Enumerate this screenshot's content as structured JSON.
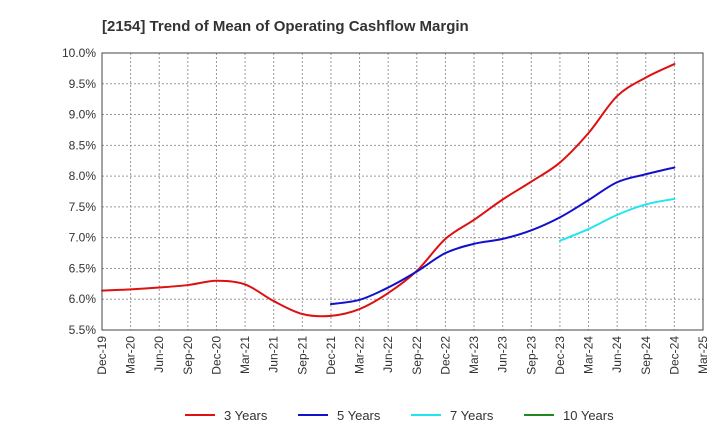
{
  "chart_data": {
    "type": "line",
    "title": "[2154]  Trend of Mean of Operating Cashflow Margin",
    "xlabel": "",
    "ylabel": "",
    "ylim": [
      5.5,
      10.0
    ],
    "y_ticks": [
      5.5,
      6.0,
      6.5,
      7.0,
      7.5,
      8.0,
      8.5,
      9.0,
      9.5,
      10.0
    ],
    "y_tick_labels": [
      "5.5%",
      "6.0%",
      "6.5%",
      "7.0%",
      "7.5%",
      "8.0%",
      "8.5%",
      "9.0%",
      "9.5%",
      "10.0%"
    ],
    "categories": [
      "Dec-19",
      "Mar-20",
      "Jun-20",
      "Sep-20",
      "Dec-20",
      "Mar-21",
      "Jun-21",
      "Sep-21",
      "Dec-21",
      "Mar-22",
      "Jun-22",
      "Sep-22",
      "Dec-22",
      "Mar-23",
      "Jun-23",
      "Sep-23",
      "Dec-23",
      "Mar-24",
      "Jun-24",
      "Sep-24",
      "Dec-24",
      "Mar-25"
    ],
    "grid": true,
    "legend_position": "bottom",
    "series": [
      {
        "name": "3 Years",
        "color": "#dd1111",
        "values": [
          6.14,
          6.16,
          6.19,
          6.23,
          6.3,
          6.24,
          5.97,
          5.76,
          5.73,
          5.84,
          6.1,
          6.46,
          6.98,
          7.29,
          7.62,
          7.91,
          8.22,
          8.7,
          9.3,
          9.6,
          9.82,
          null
        ]
      },
      {
        "name": "5 Years",
        "color": "#1111cc",
        "values": [
          null,
          null,
          null,
          null,
          null,
          null,
          null,
          null,
          5.92,
          5.99,
          6.19,
          6.45,
          6.75,
          6.9,
          6.98,
          7.12,
          7.33,
          7.61,
          7.9,
          8.03,
          8.14,
          null
        ]
      },
      {
        "name": "7 Years",
        "color": "#22e5f0",
        "values": [
          null,
          null,
          null,
          null,
          null,
          null,
          null,
          null,
          null,
          null,
          null,
          null,
          null,
          null,
          null,
          null,
          6.95,
          7.14,
          7.37,
          7.54,
          7.63,
          null
        ]
      },
      {
        "name": "10 Years",
        "color": "#228822",
        "values": [
          null,
          null,
          null,
          null,
          null,
          null,
          null,
          null,
          null,
          null,
          null,
          null,
          null,
          null,
          null,
          null,
          null,
          null,
          null,
          null,
          null,
          null
        ]
      }
    ]
  }
}
